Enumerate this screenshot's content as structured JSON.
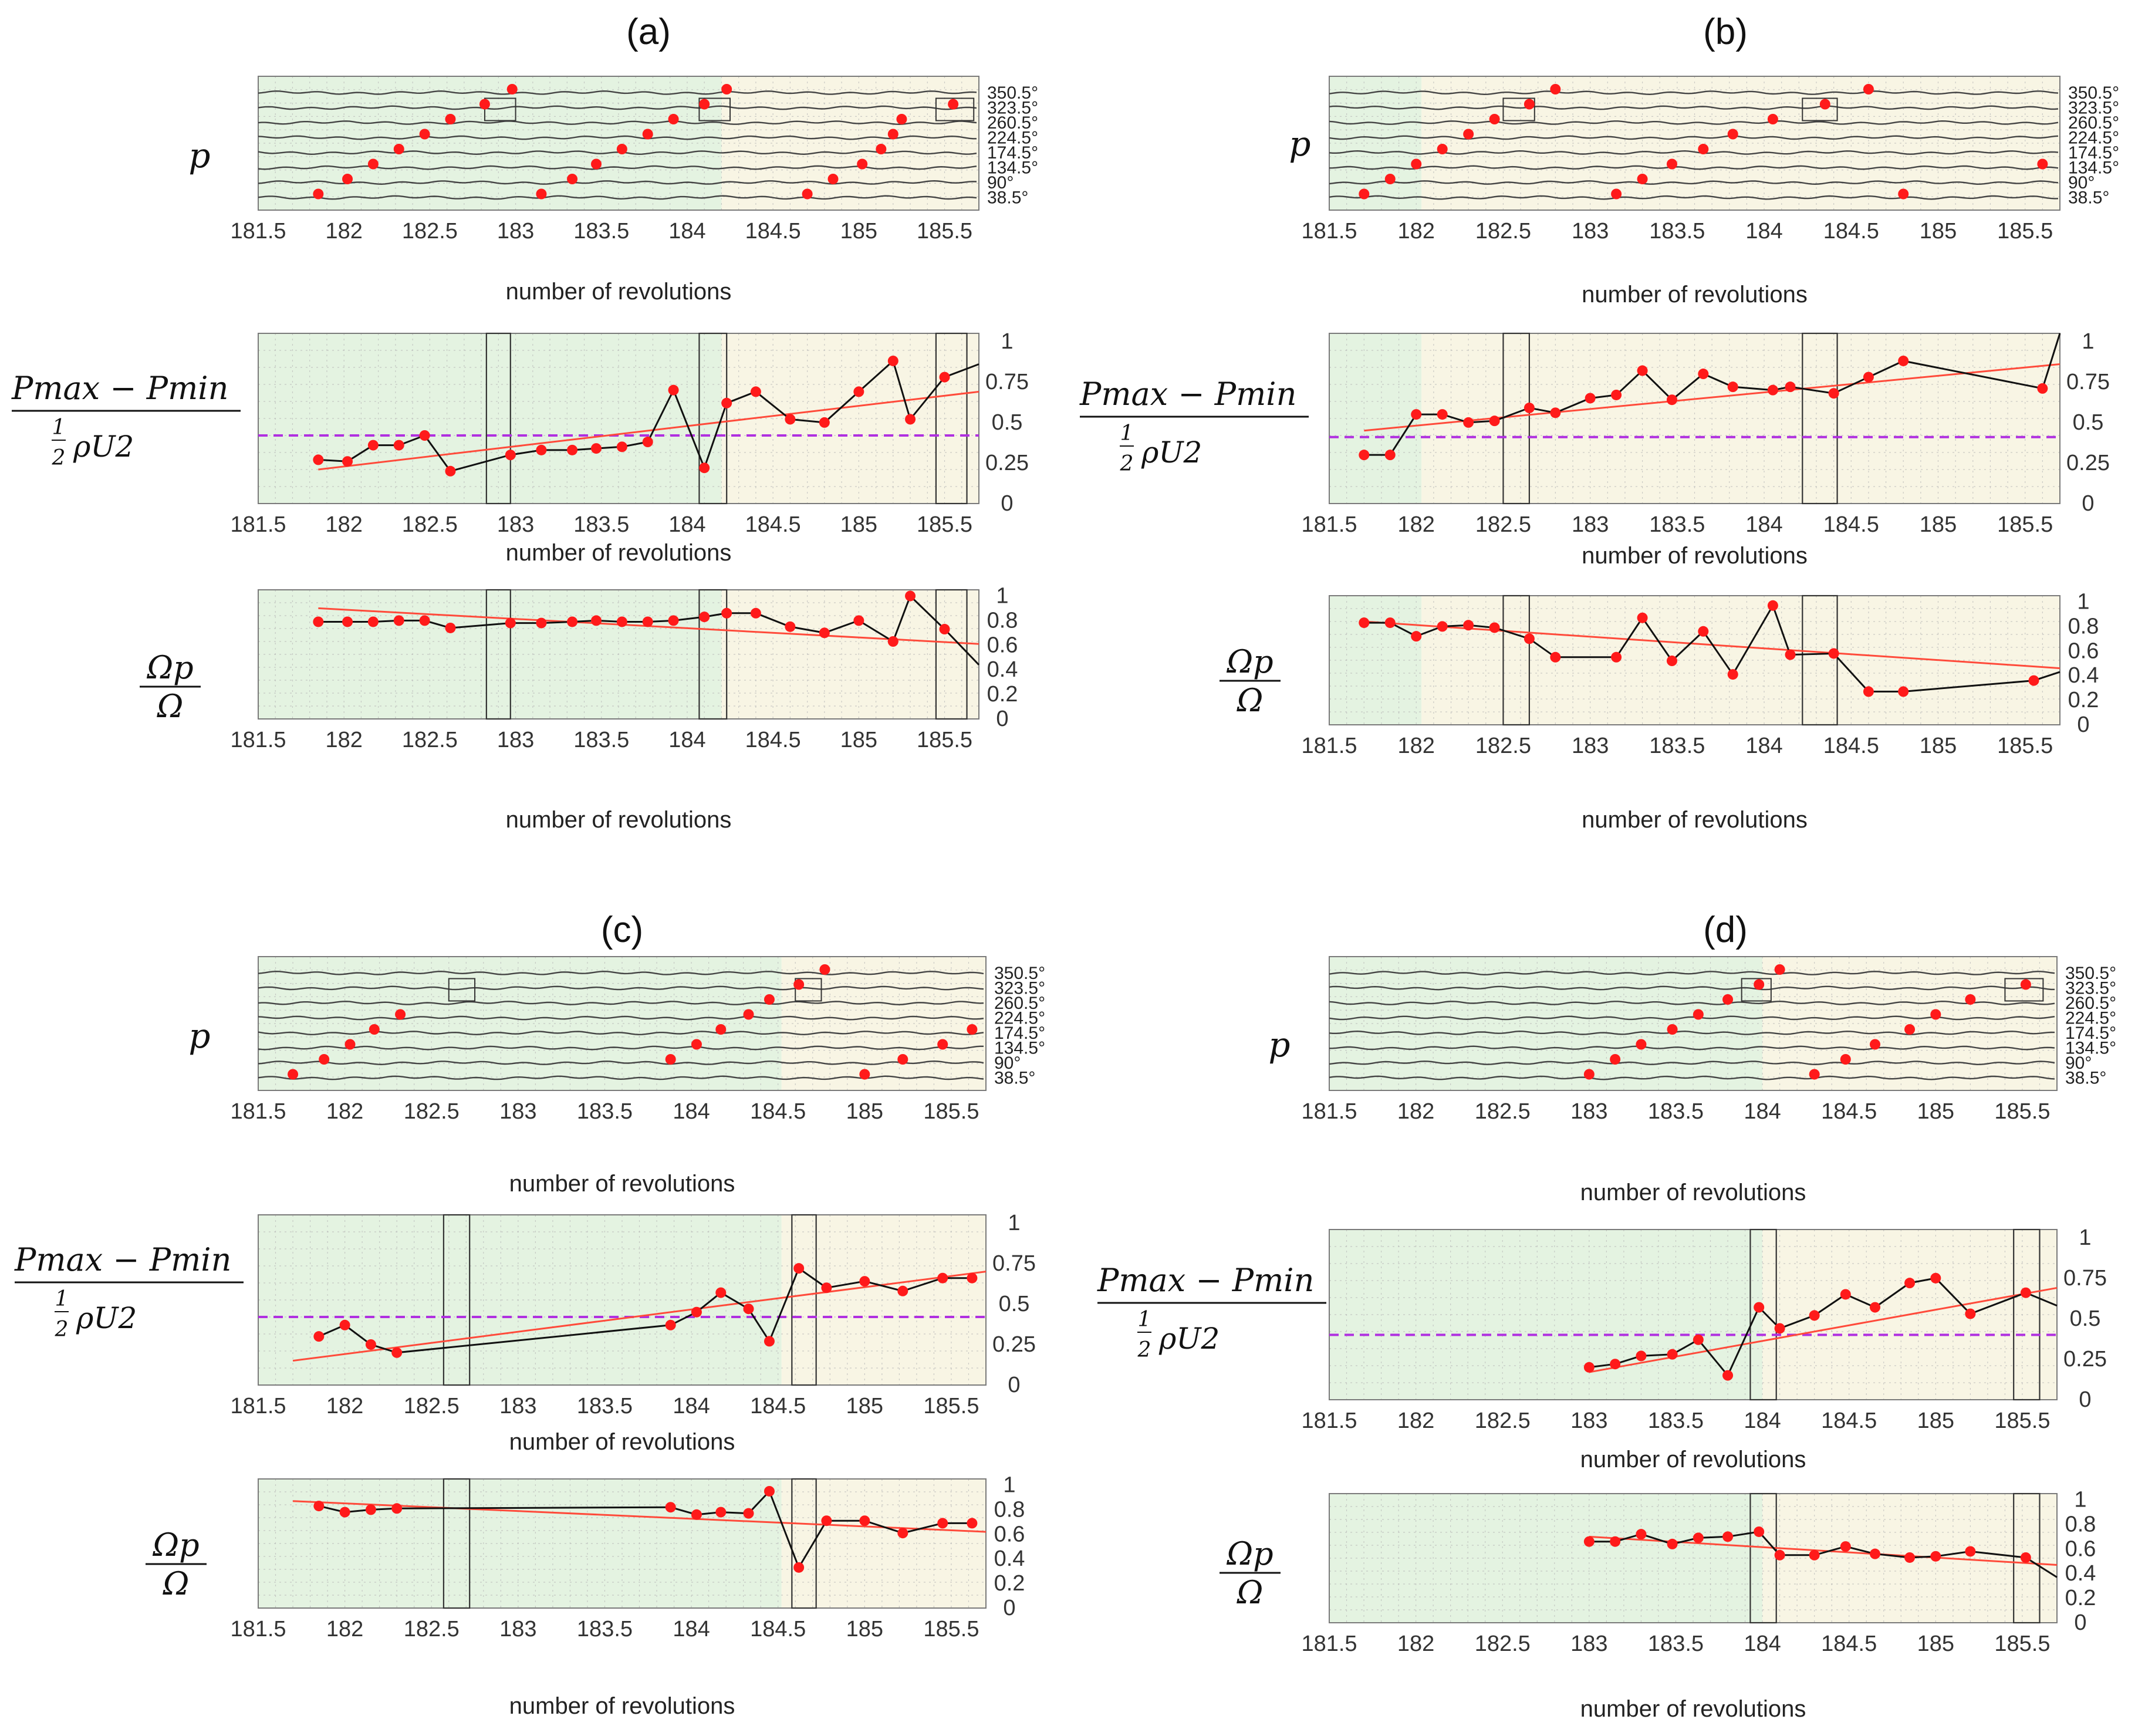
{
  "colors": {
    "green_region": "#e4f3e1",
    "cream_region": "#f8f5e4",
    "trend": "#ff4a3a",
    "threshold": "#b030e0",
    "points": "#ff1a1a",
    "line": "#111111",
    "grid": "#b8b8b8"
  },
  "labels": {
    "xlabel": "number of revolutions",
    "ylabel_p": "p",
    "ylabel_amp_num": "Pmax − Pmin",
    "ylabel_amp_frac_num": "1",
    "ylabel_amp_frac_den": "2",
    "ylabel_amp_tail": "ρU2",
    "ylabel_omega_num": "Ωp",
    "ylabel_omega_den": "Ω"
  },
  "chart_data": [
    {
      "title": "(a)",
      "type": "line",
      "x_ticks": [
        "181.5",
        "182",
        "182.5",
        "183",
        "183.5",
        "184",
        "184.5",
        "185",
        "185.5"
      ],
      "xlim": [
        181.5,
        185.7
      ],
      "regions": {
        "green": [
          181.5,
          184.2
        ],
        "cream": [
          184.2,
          185.7
        ]
      },
      "probe_angles": [
        "350.5°",
        "323.5°",
        "260.5°",
        "224.5°",
        "174.5°",
        "134.5°",
        "90°",
        "38.5°"
      ],
      "p_points": [
        [
          181.85,
          "38.5°"
        ],
        [
          182.02,
          "90°"
        ],
        [
          182.17,
          "134.5°"
        ],
        [
          182.32,
          "174.5°"
        ],
        [
          182.47,
          "224.5°"
        ],
        [
          182.62,
          "260.5°"
        ],
        [
          182.82,
          "323.5°"
        ],
        [
          182.98,
          "350.5°"
        ],
        [
          183.15,
          "38.5°"
        ],
        [
          183.33,
          "90°"
        ],
        [
          183.47,
          "134.5°"
        ],
        [
          183.62,
          "174.5°"
        ],
        [
          183.77,
          "224.5°"
        ],
        [
          183.92,
          "260.5°"
        ],
        [
          184.1,
          "323.5°"
        ],
        [
          184.23,
          "350.5°"
        ],
        [
          184.7,
          "38.5°"
        ],
        [
          184.85,
          "90°"
        ],
        [
          185.02,
          "134.5°"
        ],
        [
          185.13,
          "174.5°"
        ],
        [
          185.2,
          "224.5°"
        ],
        [
          185.25,
          "260.5°"
        ],
        [
          185.55,
          "323.5°"
        ]
      ],
      "amp_ticks": [
        "0",
        "0.25",
        "0.5",
        "0.75",
        "1"
      ],
      "amp_ylim": [
        0,
        1.05
      ],
      "amp_x": [
        181.85,
        182.02,
        182.17,
        182.32,
        182.47,
        182.62,
        182.97,
        183.15,
        183.33,
        183.47,
        183.62,
        183.77,
        183.92,
        184.1,
        184.23,
        184.4,
        184.6,
        184.8,
        185.0,
        185.2,
        185.3,
        185.5,
        185.7
      ],
      "amp_y": [
        0.27,
        0.26,
        0.36,
        0.36,
        0.42,
        0.2,
        0.3,
        0.33,
        0.33,
        0.34,
        0.35,
        0.38,
        0.7,
        0.22,
        0.62,
        0.69,
        0.52,
        0.5,
        0.69,
        0.88,
        0.52,
        0.78,
        0.86
      ],
      "amp_threshold": 0.42,
      "amp_trend": [
        [
          181.85,
          0.21
        ],
        [
          185.7,
          0.69
        ]
      ],
      "omega_ticks": [
        "0",
        "0.2",
        "0.4",
        "0.6",
        "0.8",
        "1"
      ],
      "omega_ylim": [
        0,
        1.05
      ],
      "omega_x": [
        181.85,
        182.02,
        182.17,
        182.32,
        182.47,
        182.62,
        182.97,
        183.15,
        183.33,
        183.47,
        183.62,
        183.77,
        183.92,
        184.1,
        184.23,
        184.4,
        184.6,
        184.8,
        185.0,
        185.2,
        185.3,
        185.5,
        185.7
      ],
      "omega_y": [
        0.79,
        0.79,
        0.79,
        0.8,
        0.8,
        0.74,
        0.78,
        0.78,
        0.79,
        0.8,
        0.79,
        0.79,
        0.8,
        0.83,
        0.86,
        0.86,
        0.75,
        0.7,
        0.8,
        0.63,
        1.0,
        0.73,
        0.44
      ],
      "omega_trend": [
        [
          181.85,
          0.9
        ],
        [
          185.7,
          0.61
        ]
      ],
      "boxes_p": [
        [
          182.82,
          183.0,
          "323.5°"
        ],
        [
          184.07,
          184.25,
          "323.5°"
        ],
        [
          185.45,
          185.67,
          "323.5°"
        ]
      ],
      "boxes_sub": [
        [
          182.83,
          182.97
        ],
        [
          184.07,
          184.23
        ],
        [
          185.45,
          185.63
        ]
      ]
    },
    {
      "title": "(b)",
      "type": "line",
      "x_ticks": [
        "181.5",
        "182",
        "182.5",
        "183",
        "183.5",
        "184",
        "184.5",
        "185",
        "185.5"
      ],
      "xlim": [
        181.5,
        185.7
      ],
      "regions": {
        "green": [
          181.5,
          182.03
        ],
        "cream": [
          182.03,
          185.7
        ]
      },
      "probe_angles": [
        "350.5°",
        "323.5°",
        "260.5°",
        "224.5°",
        "174.5°",
        "134.5°",
        "90°",
        "38.5°"
      ],
      "p_points": [
        [
          181.7,
          "38.5°"
        ],
        [
          181.85,
          "90°"
        ],
        [
          182.0,
          "134.5°"
        ],
        [
          182.15,
          "174.5°"
        ],
        [
          182.3,
          "224.5°"
        ],
        [
          182.45,
          "260.5°"
        ],
        [
          182.65,
          "323.5°"
        ],
        [
          182.8,
          "350.5°"
        ],
        [
          183.15,
          "38.5°"
        ],
        [
          183.3,
          "90°"
        ],
        [
          183.47,
          "134.5°"
        ],
        [
          183.65,
          "174.5°"
        ],
        [
          183.82,
          "224.5°"
        ],
        [
          184.05,
          "260.5°"
        ],
        [
          184.35,
          "323.5°"
        ],
        [
          184.6,
          "350.5°"
        ],
        [
          184.8,
          "38.5°"
        ],
        [
          185.6,
          "134.5°"
        ]
      ],
      "amp_ticks": [
        "0",
        "0.25",
        "0.5",
        "0.75",
        "1"
      ],
      "amp_ylim": [
        0,
        1.05
      ],
      "amp_x": [
        181.7,
        181.85,
        182.0,
        182.15,
        182.3,
        182.45,
        182.65,
        182.8,
        183.0,
        183.15,
        183.3,
        183.47,
        183.65,
        183.82,
        184.05,
        184.15,
        184.4,
        184.6,
        184.8,
        185.6,
        185.75
      ],
      "amp_y": [
        0.3,
        0.3,
        0.55,
        0.55,
        0.5,
        0.51,
        0.59,
        0.56,
        0.65,
        0.67,
        0.82,
        0.64,
        0.8,
        0.72,
        0.7,
        0.72,
        0.68,
        0.78,
        0.88,
        0.71,
        1.05
      ],
      "amp_threshold": 0.41,
      "amp_trend": [
        [
          181.7,
          0.45
        ],
        [
          185.7,
          0.86
        ]
      ],
      "omega_ticks": [
        "0",
        "0.2",
        "0.4",
        "0.6",
        "0.8",
        "1"
      ],
      "omega_ylim": [
        0,
        1.05
      ],
      "omega_x": [
        181.7,
        181.85,
        182.0,
        182.15,
        182.3,
        182.45,
        182.65,
        182.8,
        183.15,
        183.3,
        183.47,
        183.65,
        183.82,
        184.05,
        184.15,
        184.4,
        184.6,
        184.8,
        185.55,
        185.75
      ],
      "omega_y": [
        0.83,
        0.83,
        0.72,
        0.8,
        0.81,
        0.79,
        0.7,
        0.55,
        0.55,
        0.87,
        0.52,
        0.76,
        0.41,
        0.97,
        0.57,
        0.58,
        0.27,
        0.27,
        0.36,
        0.43
      ],
      "omega_trend": [
        [
          181.7,
          0.84
        ],
        [
          185.7,
          0.46
        ]
      ],
      "boxes_p": [
        [
          182.5,
          182.68,
          "323.5°"
        ],
        [
          184.22,
          184.42,
          "323.5°"
        ]
      ],
      "boxes_sub": [
        [
          182.5,
          182.65
        ],
        [
          184.22,
          184.42
        ]
      ]
    },
    {
      "title": "(c)",
      "type": "line",
      "x_ticks": [
        "181.5",
        "182",
        "182.5",
        "183",
        "183.5",
        "184",
        "184.5",
        "185",
        "185.5"
      ],
      "xlim": [
        181.5,
        185.7
      ],
      "regions": {
        "green": [
          181.5,
          184.52
        ],
        "cream": [
          184.52,
          185.7
        ]
      },
      "probe_angles": [
        "350.5°",
        "323.5°",
        "260.5°",
        "224.5°",
        "174.5°",
        "134.5°",
        "90°",
        "38.5°"
      ],
      "p_points": [
        [
          181.7,
          "38.5°"
        ],
        [
          181.88,
          "90°"
        ],
        [
          182.03,
          "134.5°"
        ],
        [
          182.17,
          "174.5°"
        ],
        [
          182.32,
          "224.5°"
        ],
        [
          183.88,
          "90°"
        ],
        [
          184.03,
          "134.5°"
        ],
        [
          184.17,
          "174.5°"
        ],
        [
          184.33,
          "224.5°"
        ],
        [
          184.45,
          "260.5°"
        ],
        [
          184.62,
          "323.5°"
        ],
        [
          184.77,
          "350.5°"
        ],
        [
          185.0,
          "38.5°"
        ],
        [
          185.22,
          "90°"
        ],
        [
          185.45,
          "134.5°"
        ],
        [
          185.62,
          "174.5°"
        ]
      ],
      "amp_ticks": [
        "0",
        "0.25",
        "0.5",
        "0.75",
        "1"
      ],
      "amp_ylim": [
        0,
        1.05
      ],
      "amp_x": [
        181.85,
        182.0,
        182.15,
        182.3,
        183.88,
        184.03,
        184.17,
        184.33,
        184.45,
        184.62,
        184.78,
        185.0,
        185.22,
        185.45,
        185.62
      ],
      "amp_y": [
        0.3,
        0.37,
        0.25,
        0.2,
        0.37,
        0.45,
        0.57,
        0.47,
        0.27,
        0.72,
        0.6,
        0.64,
        0.58,
        0.66,
        0.66
      ],
      "amp_threshold": 0.42,
      "amp_trend": [
        [
          181.7,
          0.15
        ],
        [
          185.7,
          0.7
        ]
      ],
      "omega_ticks": [
        "0",
        "0.2",
        "0.4",
        "0.6",
        "0.8",
        "1"
      ],
      "omega_ylim": [
        0,
        1.05
      ],
      "omega_x": [
        181.85,
        182.0,
        182.15,
        182.3,
        183.88,
        184.03,
        184.17,
        184.33,
        184.45,
        184.62,
        184.78,
        185.0,
        185.22,
        185.45,
        185.62
      ],
      "omega_y": [
        0.83,
        0.78,
        0.8,
        0.81,
        0.82,
        0.76,
        0.78,
        0.77,
        0.95,
        0.33,
        0.71,
        0.71,
        0.61,
        0.69,
        0.69
      ],
      "omega_trend": [
        [
          181.7,
          0.87
        ],
        [
          185.7,
          0.62
        ]
      ],
      "boxes_p": [
        [
          182.6,
          182.75,
          "323.5°"
        ],
        [
          184.6,
          184.75,
          "323.5°"
        ]
      ],
      "boxes_sub": [
        [
          182.57,
          182.72
        ],
        [
          184.58,
          184.72
        ]
      ]
    },
    {
      "title": "(d)",
      "type": "line",
      "x_ticks": [
        "181.5",
        "182",
        "182.5",
        "183",
        "183.5",
        "184",
        "184.5",
        "185",
        "185.5"
      ],
      "xlim": [
        181.5,
        185.7
      ],
      "regions": {
        "green": [
          181.5,
          184.0
        ],
        "cream": [
          184.0,
          185.7
        ]
      },
      "probe_angles": [
        "350.5°",
        "323.5°",
        "260.5°",
        "224.5°",
        "174.5°",
        "134.5°",
        "90°",
        "38.5°"
      ],
      "p_points": [
        [
          183.0,
          "38.5°"
        ],
        [
          183.15,
          "90°"
        ],
        [
          183.3,
          "134.5°"
        ],
        [
          183.48,
          "174.5°"
        ],
        [
          183.63,
          "224.5°"
        ],
        [
          183.8,
          "260.5°"
        ],
        [
          183.98,
          "323.5°"
        ],
        [
          184.1,
          "350.5°"
        ],
        [
          184.3,
          "38.5°"
        ],
        [
          184.48,
          "90°"
        ],
        [
          184.65,
          "134.5°"
        ],
        [
          184.85,
          "174.5°"
        ],
        [
          185.0,
          "224.5°"
        ],
        [
          185.2,
          "260.5°"
        ],
        [
          185.52,
          "323.5°"
        ]
      ],
      "amp_ticks": [
        "0",
        "0.25",
        "0.5",
        "0.75",
        "1"
      ],
      "amp_ylim": [
        0,
        1.05
      ],
      "amp_x": [
        183.0,
        183.15,
        183.3,
        183.48,
        183.63,
        183.8,
        183.98,
        184.1,
        184.3,
        184.48,
        184.65,
        184.85,
        185.0,
        185.2,
        185.52,
        185.72
      ],
      "amp_y": [
        0.2,
        0.22,
        0.27,
        0.28,
        0.37,
        0.15,
        0.57,
        0.44,
        0.52,
        0.65,
        0.57,
        0.72,
        0.75,
        0.53,
        0.66,
        0.58
      ],
      "amp_threshold": 0.4,
      "amp_trend": [
        [
          183.0,
          0.17
        ],
        [
          185.7,
          0.69
        ]
      ],
      "omega_ticks": [
        "0",
        "0.2",
        "0.4",
        "0.6",
        "0.8",
        "1"
      ],
      "omega_ylim": [
        0,
        1.05
      ],
      "omega_x": [
        183.0,
        183.15,
        183.3,
        183.48,
        183.63,
        183.8,
        183.98,
        184.1,
        184.3,
        184.48,
        184.65,
        184.85,
        185.0,
        185.2,
        185.52,
        185.72
      ],
      "omega_y": [
        0.66,
        0.66,
        0.72,
        0.64,
        0.69,
        0.7,
        0.74,
        0.55,
        0.55,
        0.62,
        0.56,
        0.53,
        0.54,
        0.58,
        0.53,
        0.37
      ],
      "omega_trend": [
        [
          183.0,
          0.7
        ],
        [
          185.7,
          0.47
        ]
      ],
      "boxes_p": [
        [
          183.88,
          184.05,
          "323.5°"
        ],
        [
          185.4,
          185.62,
          "323.5°"
        ]
      ],
      "boxes_sub": [
        [
          183.93,
          184.08
        ],
        [
          185.45,
          185.6
        ]
      ]
    }
  ]
}
